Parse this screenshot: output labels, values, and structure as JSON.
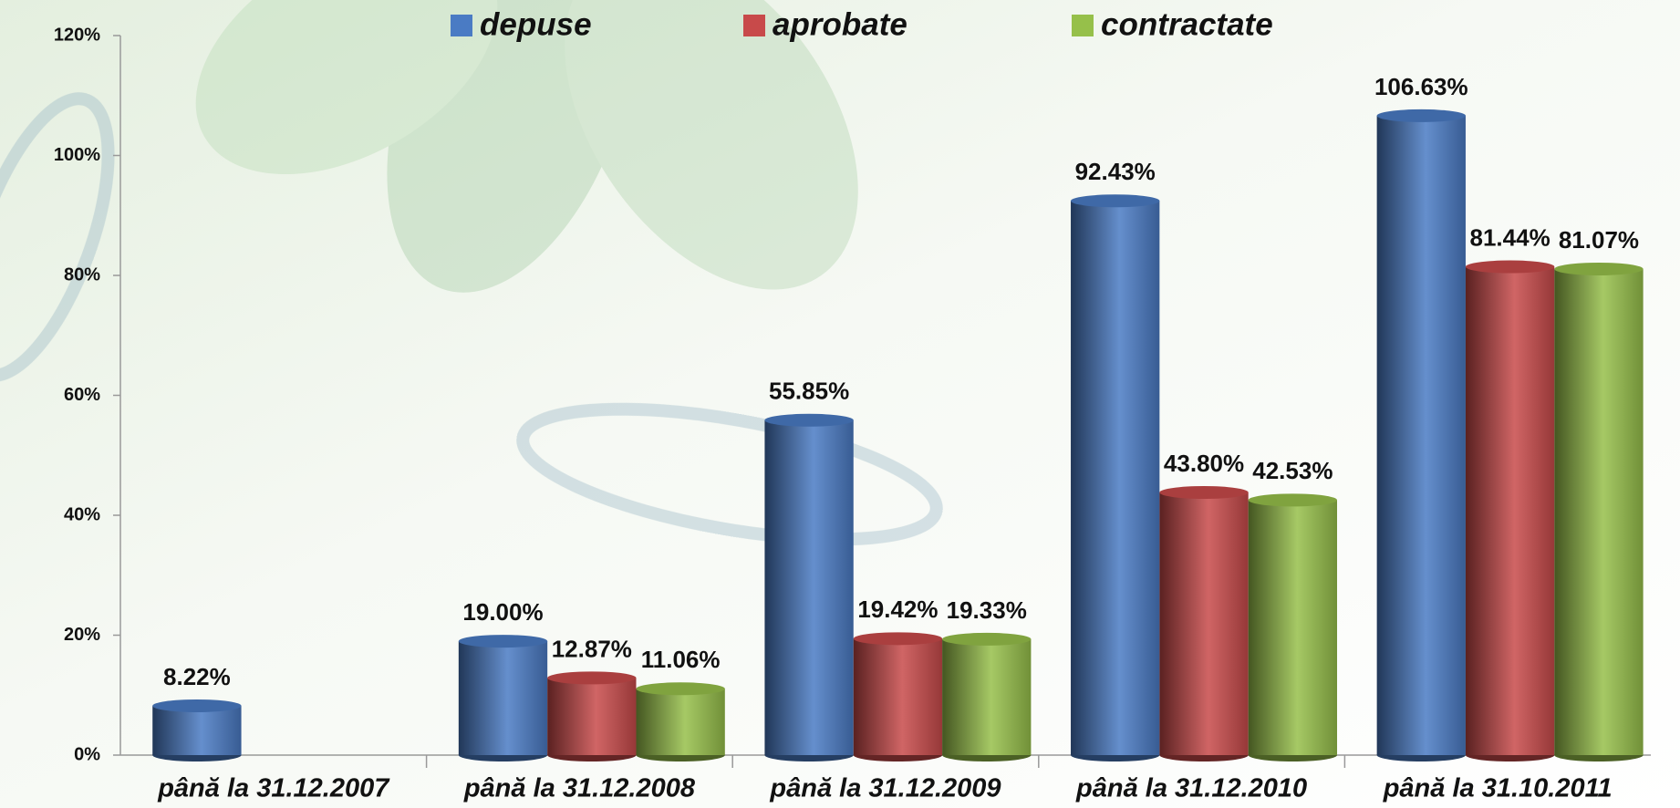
{
  "chart_data": {
    "type": "bar",
    "categories": [
      "până la 31.12.2007",
      "până la 31.12.2008",
      "până la 31.12.2009",
      "până la 31.12.2010",
      "până la 31.10.2011"
    ],
    "series": [
      {
        "name": "depuse",
        "color": "#4a7bc4",
        "values": [
          8.22,
          19.0,
          55.85,
          92.43,
          106.63
        ],
        "value_labels": [
          "8.22%",
          "19.00%",
          "55.85%",
          "92.43%",
          "106.63%"
        ]
      },
      {
        "name": "aprobate",
        "color": "#c84a4a",
        "values": [
          null,
          12.87,
          19.42,
          43.8,
          81.44
        ],
        "value_labels": [
          null,
          "12.87%",
          "19.42%",
          "43.80%",
          "81.44%"
        ]
      },
      {
        "name": "contractate",
        "color": "#96c04a",
        "values": [
          null,
          11.06,
          19.33,
          42.53,
          81.07
        ],
        "value_labels": [
          null,
          "11.06%",
          "19.33%",
          "42.53%",
          "81.07%"
        ]
      }
    ],
    "ylim": [
      0,
      120
    ],
    "yticks": [
      {
        "value": 0,
        "label": "0%"
      },
      {
        "value": 20,
        "label": "20%"
      },
      {
        "value": 40,
        "label": "40%"
      },
      {
        "value": 60,
        "label": "60%"
      },
      {
        "value": 80,
        "label": "80%"
      },
      {
        "value": 100,
        "label": "100%"
      },
      {
        "value": 120,
        "label": "120%"
      }
    ],
    "legend": "top"
  }
}
